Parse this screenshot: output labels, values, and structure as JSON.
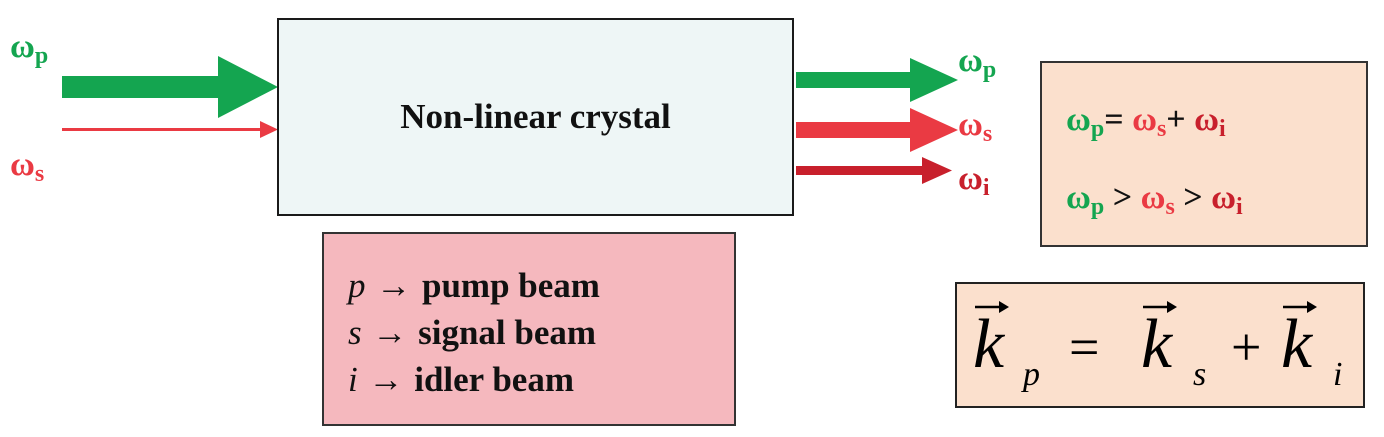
{
  "colors": {
    "pump": "#14a550",
    "signal": "#ea3a43",
    "idler": "#c8202c"
  },
  "crystal": {
    "label": "Non-linear crystal"
  },
  "inputs": {
    "pump": {
      "symbol": "ω",
      "sub": "p"
    },
    "signal": {
      "symbol": "ω",
      "sub": "s"
    }
  },
  "outputs": {
    "pump": {
      "symbol": "ω",
      "sub": "p"
    },
    "signal": {
      "symbol": "ω",
      "sub": "s"
    },
    "idler": {
      "symbol": "ω",
      "sub": "i"
    }
  },
  "legend": [
    {
      "var": "p",
      "arrow": "→",
      "text": "pump beam"
    },
    {
      "var": "s",
      "arrow": "→",
      "text": "signal beam"
    },
    {
      "var": "i",
      "arrow": "→",
      "text": "idler beam"
    }
  ],
  "relations": {
    "energy": {
      "eq": "=",
      "plus": "+"
    },
    "order": {
      "gt": ">"
    }
  },
  "momentum": {
    "k": "k",
    "eq": "=",
    "plus": "+",
    "sub_p": "p",
    "sub_s": "s",
    "sub_i": "i"
  }
}
